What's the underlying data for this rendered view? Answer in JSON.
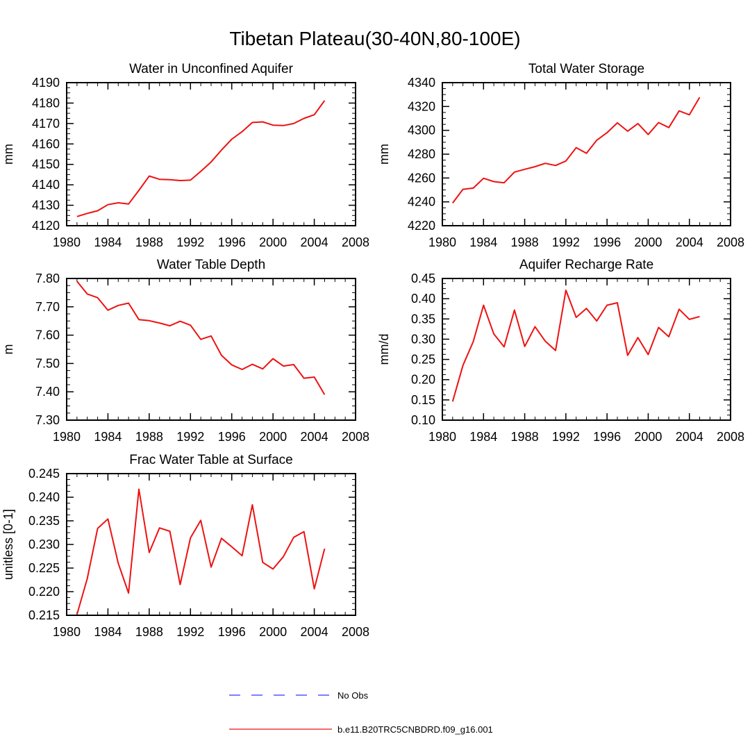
{
  "figure_title": "Tibetan Plateau(30-40N,80-100E)",
  "legend": [
    {
      "label": "No Obs",
      "color": "#3333ff",
      "style": "dashed"
    },
    {
      "label": "b.e11.B20TRC5CNBDRD.f09_g16.001",
      "color": "#ee1111",
      "style": "solid"
    }
  ],
  "chart_data": [
    {
      "type": "line",
      "title": "Water in Unconfined Aquifer",
      "ylabel": "mm",
      "xlabel": "",
      "xlim": [
        1980,
        2008
      ],
      "ylim": [
        4120,
        4190
      ],
      "xticks": [
        1980,
        1984,
        1988,
        1992,
        1996,
        2000,
        2004,
        2008
      ],
      "yticks": [
        "4120",
        "4130",
        "4140",
        "4150",
        "4160",
        "4170",
        "4180",
        "4190"
      ],
      "x": [
        1981,
        1982,
        1983,
        1984,
        1985,
        1986,
        1987,
        1988,
        1989,
        1990,
        1991,
        1992,
        1993,
        1994,
        1995,
        1996,
        1997,
        1998,
        1999,
        2000,
        2001,
        2002,
        2003,
        2004,
        2005
      ],
      "series": [
        {
          "name": "b.e11.B20TRC5CNBDRD.f09_g16.001",
          "color": "#ee1111",
          "values": [
            4124.5,
            4126,
            4127.3,
            4130.3,
            4131.2,
            4130.6,
            4137.3,
            4144.3,
            4142.7,
            4142.5,
            4142.1,
            4142.3,
            4146.6,
            4151.2,
            4157,
            4162.3,
            4166,
            4170.5,
            4170.8,
            4169.2,
            4169,
            4170,
            4172.5,
            4174.3,
            4181.2
          ]
        }
      ]
    },
    {
      "type": "line",
      "title": "Total Water Storage",
      "ylabel": "mm",
      "xlabel": "",
      "xlim": [
        1980,
        2008
      ],
      "ylim": [
        4220,
        4340
      ],
      "xticks": [
        1980,
        1984,
        1988,
        1992,
        1996,
        2000,
        2004,
        2008
      ],
      "yticks": [
        "4220",
        "4240",
        "4260",
        "4280",
        "4300",
        "4320",
        "4340"
      ],
      "x": [
        1981,
        1982,
        1983,
        1984,
        1985,
        1986,
        1987,
        1988,
        1989,
        1990,
        1991,
        1992,
        1993,
        1994,
        1995,
        1996,
        1997,
        1998,
        1999,
        2000,
        2001,
        2002,
        2003,
        2004,
        2005
      ],
      "series": [
        {
          "name": "b.e11.B20TRC5CNBDRD.f09_g16.001",
          "color": "#ee1111",
          "values": [
            4239,
            4250.5,
            4251.5,
            4259.8,
            4257,
            4256,
            4265,
            4267.3,
            4269.5,
            4272.3,
            4270.5,
            4274.3,
            4285.5,
            4280.7,
            4291.7,
            4298,
            4306.3,
            4299.3,
            4305.7,
            4296.5,
            4306.5,
            4302.3,
            4316.3,
            4313,
            4327.7
          ]
        }
      ]
    },
    {
      "type": "line",
      "title": "Water Table Depth",
      "ylabel": "m",
      "xlabel": "",
      "xlim": [
        1980,
        2008
      ],
      "ylim": [
        7.3,
        7.8
      ],
      "xticks": [
        1980,
        1984,
        1988,
        1992,
        1996,
        2000,
        2004,
        2008
      ],
      "yticks": [
        "7.30",
        "7.40",
        "7.50",
        "7.60",
        "7.70",
        "7.80"
      ],
      "x": [
        1981,
        1982,
        1983,
        1984,
        1985,
        1986,
        1987,
        1988,
        1989,
        1990,
        1991,
        1992,
        1993,
        1994,
        1995,
        1996,
        1997,
        1998,
        1999,
        2000,
        2001,
        2002,
        2003,
        2004,
        2005
      ],
      "series": [
        {
          "name": "b.e11.B20TRC5CNBDRD.f09_g16.001",
          "color": "#ee1111",
          "values": [
            7.79,
            7.745,
            7.732,
            7.688,
            7.705,
            7.713,
            7.655,
            7.651,
            7.643,
            7.633,
            7.649,
            7.635,
            7.585,
            7.597,
            7.529,
            7.495,
            7.479,
            7.497,
            7.481,
            7.517,
            7.491,
            7.496,
            7.448,
            7.452,
            7.39
          ]
        }
      ]
    },
    {
      "type": "line",
      "title": "Aquifer Recharge Rate",
      "ylabel": "mm/d",
      "xlabel": "",
      "xlim": [
        1980,
        2008
      ],
      "ylim": [
        0.1,
        0.45
      ],
      "xticks": [
        1980,
        1984,
        1988,
        1992,
        1996,
        2000,
        2004,
        2008
      ],
      "yticks": [
        "0.10",
        "0.15",
        "0.20",
        "0.25",
        "0.30",
        "0.35",
        "0.40",
        "0.45"
      ],
      "x": [
        1981,
        1982,
        1983,
        1984,
        1985,
        1986,
        1987,
        1988,
        1989,
        1990,
        1991,
        1992,
        1993,
        1994,
        1995,
        1996,
        1997,
        1998,
        1999,
        2000,
        2001,
        2002,
        2003,
        2004,
        2005
      ],
      "series": [
        {
          "name": "b.e11.B20TRC5CNBDRD.f09_g16.001",
          "color": "#ee1111",
          "values": [
            0.146,
            0.235,
            0.294,
            0.384,
            0.313,
            0.281,
            0.372,
            0.282,
            0.331,
            0.295,
            0.272,
            0.421,
            0.354,
            0.376,
            0.345,
            0.384,
            0.39,
            0.26,
            0.304,
            0.262,
            0.329,
            0.306,
            0.374,
            0.349,
            0.356
          ]
        }
      ]
    },
    {
      "type": "line",
      "title": "Frac Water Table at Surface",
      "ylabel": "unitless [0-1]",
      "xlabel": "",
      "xlim": [
        1980,
        2008
      ],
      "ylim": [
        0.215,
        0.245
      ],
      "xticks": [
        1980,
        1984,
        1988,
        1992,
        1996,
        2000,
        2004,
        2008
      ],
      "yticks": [
        "0.215",
        "0.220",
        "0.225",
        "0.230",
        "0.235",
        "0.240",
        "0.245"
      ],
      "x": [
        1981,
        1982,
        1983,
        1984,
        1985,
        1986,
        1987,
        1988,
        1989,
        1990,
        1991,
        1992,
        1993,
        1994,
        1995,
        1996,
        1997,
        1998,
        1999,
        2000,
        2001,
        2002,
        2003,
        2004,
        2005
      ],
      "series": [
        {
          "name": "b.e11.B20TRC5CNBDRD.f09_g16.001",
          "color": "#ee1111",
          "values": [
            0.2152,
            0.2228,
            0.2334,
            0.2354,
            0.226,
            0.2197,
            0.2417,
            0.2283,
            0.2335,
            0.2328,
            0.2215,
            0.2314,
            0.2351,
            0.2252,
            0.2313,
            0.2295,
            0.2276,
            0.2384,
            0.2262,
            0.2248,
            0.2274,
            0.2315,
            0.2327,
            0.2206,
            0.2291
          ]
        }
      ]
    }
  ]
}
